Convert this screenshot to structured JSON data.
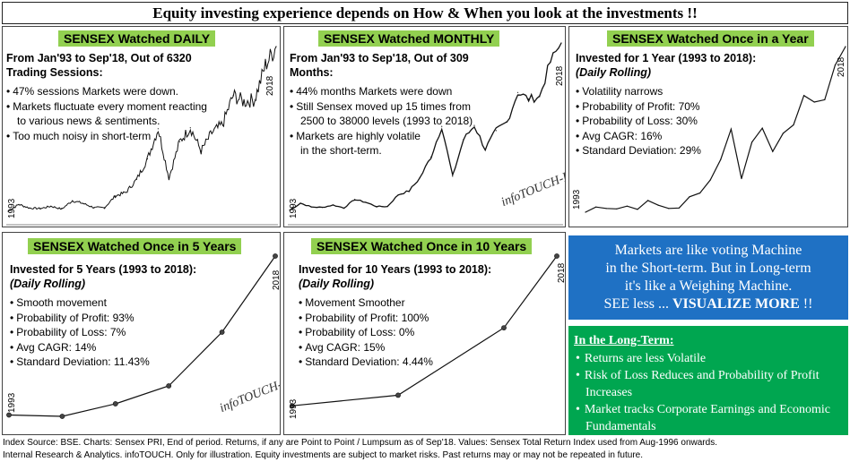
{
  "header": {
    "title": "Equity investing experience depends on How & When you look at the investments !!"
  },
  "watermark": "infoTOUCH-BKR",
  "panels": {
    "daily": {
      "title": "SENSEX Watched DAILY",
      "subtitle1": "From Jan'93 to Sep'18, Out of 6320",
      "subtitle2": "Trading Sessions:",
      "points": [
        "47% sessions Markets were down.",
        "Markets fluctuate every moment reacting",
        "to various news & sentiments.",
        "Too much noisy in short-term"
      ]
    },
    "monthly": {
      "title": "SENSEX Watched MONTHLY",
      "subtitle1": "From Jan'93 to Sep'18, Out of 309",
      "subtitle2": "Months:",
      "points": [
        "44% months Markets were down",
        "Still Sensex moved up 15 times from",
        "2500 to 38000 levels (1993 to 2018)",
        "Markets are highly volatile",
        "in the short-term."
      ]
    },
    "yearly": {
      "title": "SENSEX Watched Once in a Year",
      "subtitle1": "Invested for 1 Year (1993 to 2018):",
      "subtitle2": "(Daily Rolling)",
      "points": [
        "Volatility narrows",
        "Probability of Profit: 70%",
        "Probability of Loss: 30%",
        "Avg CAGR: 16%",
        "Standard Deviation: 29%"
      ]
    },
    "five": {
      "title": "SENSEX Watched Once in 5 Years",
      "subtitle1": "Invested for 5 Years (1993 to 2018):",
      "subtitle2": "(Daily Rolling)",
      "points": [
        "Smooth movement",
        "Probability of Profit: 93%",
        "Probability of Loss: 7%",
        "Avg CAGR: 14%",
        "Standard Deviation: 11.43%"
      ]
    },
    "ten": {
      "title": "SENSEX Watched Once in 10 Years",
      "subtitle1": "Invested for 10 Years (1993 to 2018):",
      "subtitle2": "(Daily Rolling)",
      "points": [
        "Movement Smoother",
        "Probability of Profit: 100%",
        "Probability of Loss: 0%",
        "Avg CAGR: 15%",
        "Standard Deviation: 4.44%"
      ]
    }
  },
  "quote": {
    "line1": "Markets are like voting Machine",
    "line2": "in the Short-term. But in Long-term",
    "line3": "it's like a Weighing Machine.",
    "line4a": "SEE less ... ",
    "line4b": "VISUALIZE MORE",
    "line4c": " !!"
  },
  "longterm": {
    "heading": "In the Long-Term:",
    "points": [
      "Returns are less Volatile",
      "Risk of Loss Reduces and Probability of Profit Increases",
      "Market tracks Corporate Earnings and Economic Fundamentals"
    ]
  },
  "footer": {
    "line1": "Index Source: BSE. Charts: Sensex PRI, End of period. Returns, if any are Point to Point / Lumpsum as of Sep'18. Values: Sensex Total Return Index used from Aug-1996 onwards.",
    "line2": "Internal Research & Analytics. infoTOUCH. Only for illustration. Equity investments are subject to market risks. Past returns may or may not be repeated in future."
  },
  "chart_data": [
    {
      "id": "daily",
      "type": "line",
      "title": "SENSEX Watched DAILY",
      "x_start_label": "1993",
      "x_end_label": "2018",
      "x": [
        1993,
        1994,
        1995,
        1996,
        1997,
        1998,
        1999,
        2000,
        2001,
        2002,
        2003,
        2004,
        2005,
        2006,
        2007,
        2008,
        2009,
        2010,
        2011,
        2012,
        2013,
        2014,
        2015,
        2016,
        2017,
        2018
      ],
      "values": [
        2500,
        4000,
        3200,
        3100,
        3600,
        3000,
        4800,
        4200,
        3300,
        3300,
        5800,
        6600,
        9400,
        13800,
        20300,
        9700,
        17500,
        20500,
        15500,
        19400,
        21200,
        27500,
        26100,
        26600,
        34000,
        38000
      ]
    },
    {
      "id": "monthly",
      "type": "line",
      "title": "SENSEX Watched MONTHLY",
      "x_start_label": "1993",
      "x_end_label": "2018",
      "x": [
        1993,
        1994,
        1995,
        1996,
        1997,
        1998,
        1999,
        2000,
        2001,
        2002,
        2003,
        2004,
        2005,
        2006,
        2007,
        2008,
        2009,
        2010,
        2011,
        2012,
        2013,
        2014,
        2015,
        2016,
        2017,
        2018
      ],
      "values": [
        2500,
        4000,
        3200,
        3100,
        3600,
        3000,
        4800,
        4200,
        3300,
        3300,
        5800,
        6600,
        9400,
        13800,
        20300,
        9700,
        17500,
        20500,
        15500,
        19400,
        21200,
        27500,
        26100,
        26600,
        34000,
        38000
      ]
    },
    {
      "id": "yearly",
      "type": "line",
      "title": "SENSEX Watched Once in a Year",
      "x_start_label": "1993",
      "x_end_label": "2018",
      "x": [
        1993,
        1994,
        1995,
        1996,
        1997,
        1998,
        1999,
        2000,
        2001,
        2002,
        2003,
        2004,
        2005,
        2006,
        2007,
        2008,
        2009,
        2010,
        2011,
        2012,
        2013,
        2014,
        2015,
        2016,
        2017,
        2018
      ],
      "values": [
        2500,
        3600,
        3300,
        3200,
        3800,
        3100,
        5000,
        4000,
        3300,
        3400,
        5800,
        6600,
        9400,
        13800,
        20300,
        9700,
        17500,
        20500,
        15500,
        19400,
        21200,
        27500,
        26100,
        26600,
        34000,
        38000
      ]
    },
    {
      "id": "five",
      "type": "line",
      "title": "SENSEX Watched Once in 5 Years",
      "x_start_label": "1993",
      "x_end_label": "2018",
      "x": [
        1993,
        1998,
        2003,
        2008,
        2013,
        2018
      ],
      "values": [
        2500,
        2200,
        5000,
        9000,
        21000,
        38000
      ]
    },
    {
      "id": "ten",
      "type": "line",
      "title": "SENSEX Watched Once in 10 Years",
      "x_start_label": "1993",
      "x_end_label": "2018",
      "x": [
        1993,
        2003,
        2013,
        2018
      ],
      "values": [
        2500,
        5000,
        21000,
        38000
      ]
    }
  ]
}
